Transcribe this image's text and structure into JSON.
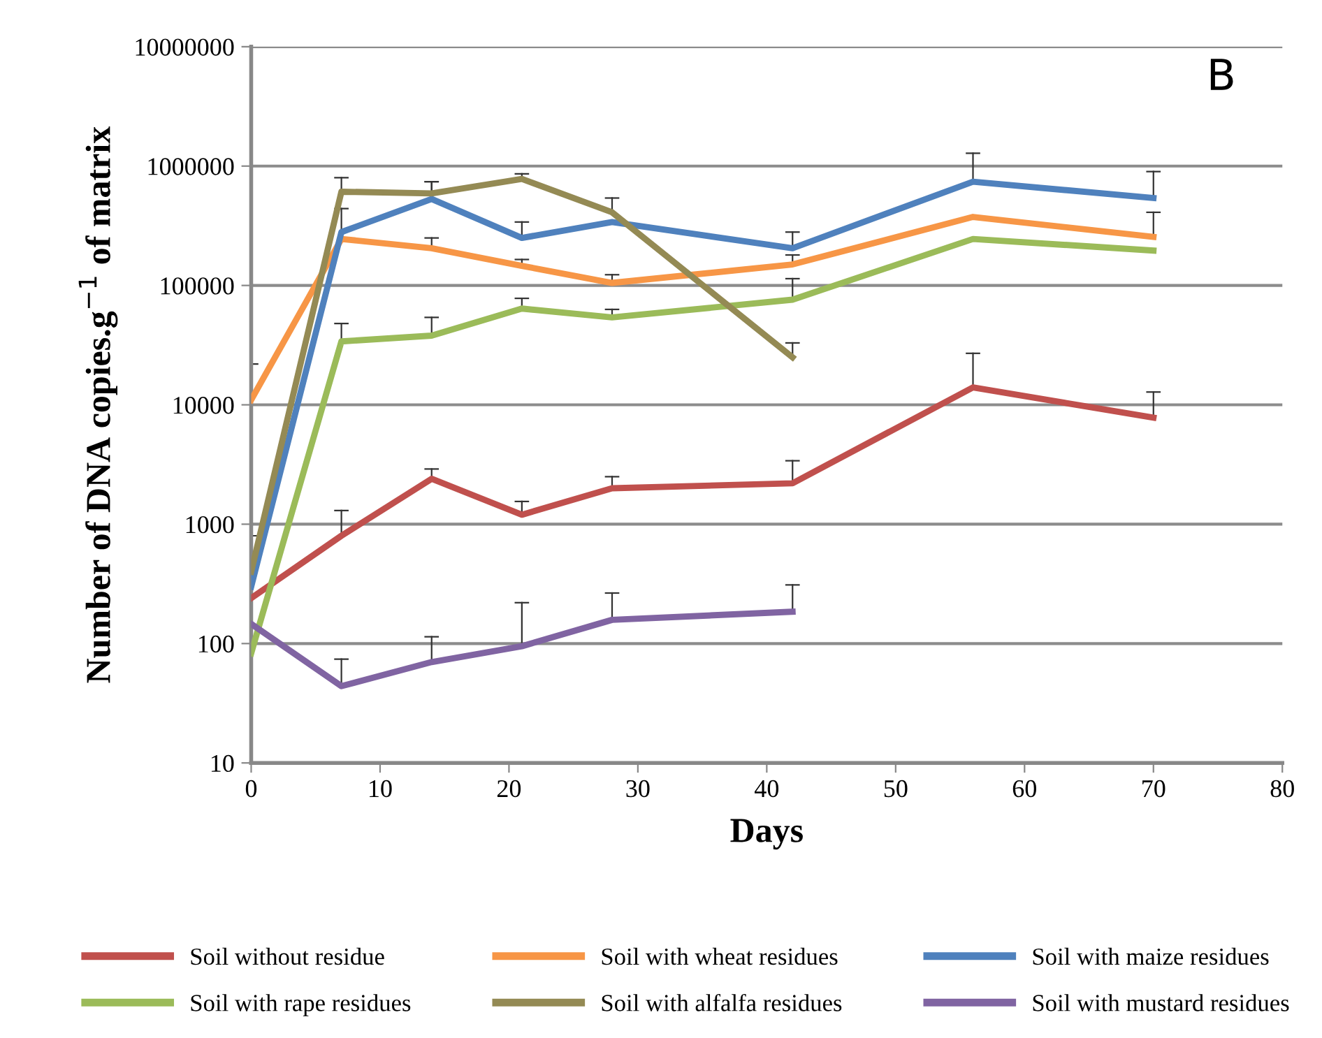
{
  "chart_data": {
    "type": "line",
    "xlabel": "Days",
    "ylabel": "Number of DNA copies.g$^{−1}$ of matrix",
    "annotations": [
      "B"
    ],
    "x": [
      0,
      7,
      14,
      21,
      28,
      42,
      56,
      70
    ],
    "xlim": [
      0,
      80
    ],
    "xticks": [
      0,
      10,
      20,
      30,
      40,
      50,
      60,
      70,
      80
    ],
    "log": true,
    "ylim": [
      10,
      10000000
    ],
    "yticks": [
      10,
      100,
      1000,
      10000,
      100000,
      1000000,
      10000000
    ],
    "grid": "y",
    "legend": "bottom",
    "marker": "none",
    "line_style": "solid",
    "series": [
      {
        "name": "Soil without residue",
        "color": "#c0504d",
        "values": [
          240,
          800,
          2400,
          1200,
          2000,
          2200,
          14000,
          7800
        ],
        "errors": [
          null,
          [
            800,
            1300
          ],
          [
            2400,
            2900
          ],
          [
            1200,
            1550
          ],
          [
            2000,
            2500
          ],
          [
            2200,
            3400
          ],
          [
            14000,
            27000
          ],
          [
            7800,
            12800
          ]
        ]
      },
      {
        "name": "Soil with wheat residues",
        "color": "#f79646",
        "values": [
          11000,
          245000,
          205000,
          146000,
          105000,
          150000,
          375000,
          255000
        ],
        "errors": [
          [
            11000,
            22000
          ],
          null,
          [
            205000,
            250000
          ],
          [
            146000,
            165000
          ],
          [
            105000,
            123000
          ],
          [
            150000,
            180000
          ],
          null,
          [
            255000,
            410000
          ]
        ]
      },
      {
        "name": "Soil with maize residues",
        "color": "#4f81bd",
        "values": [
          300,
          280000,
          530000,
          250000,
          340000,
          205000,
          740000,
          540000
        ],
        "errors": [
          [
            300,
            800
          ],
          [
            280000,
            440000
          ],
          [
            530000,
            740000
          ],
          [
            250000,
            340000
          ],
          null,
          [
            205000,
            280000
          ],
          [
            740000,
            1280000
          ],
          [
            540000,
            900000
          ]
        ]
      },
      {
        "name": "Soil with rape residues",
        "color": "#9bbb59",
        "values": [
          83,
          34000,
          38000,
          64000,
          54000,
          76000,
          245000,
          196000
        ],
        "errors": [
          null,
          [
            34000,
            48000
          ],
          [
            38000,
            54000
          ],
          [
            64000,
            78000
          ],
          [
            54000,
            63000
          ],
          [
            76000,
            114000
          ],
          null,
          null
        ]
      },
      {
        "name": "Soil with alfalfa residues",
        "color": "#948a54",
        "values": [
          400,
          610000,
          590000,
          780000,
          410000,
          25000,
          null,
          null
        ],
        "errors": [
          null,
          [
            610000,
            800000
          ],
          [
            590000,
            740000
          ],
          [
            780000,
            860000
          ],
          [
            410000,
            540000
          ],
          [
            25000,
            33000
          ],
          null,
          null
        ]
      },
      {
        "name": "Soil with mustard residues",
        "color": "#8064a2",
        "values": [
          146,
          44,
          70,
          95,
          158,
          185,
          null,
          null
        ],
        "errors": [
          null,
          [
            44,
            74
          ],
          [
            70,
            114
          ],
          [
            95,
            220
          ],
          [
            158,
            265
          ],
          [
            185,
            310
          ],
          null,
          null
        ]
      }
    ]
  }
}
